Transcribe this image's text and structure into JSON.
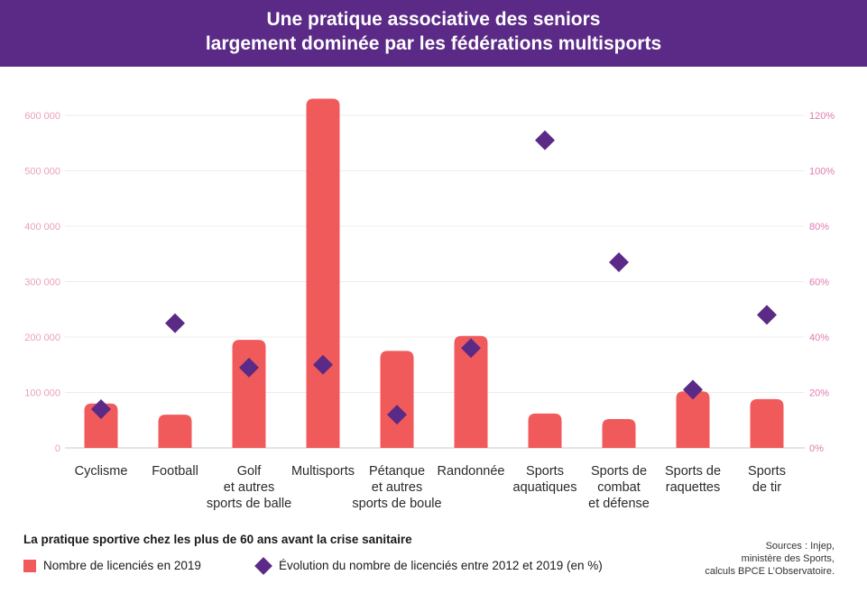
{
  "title": {
    "line1": "Une pratique associative des seniors",
    "line2": "largement dominée par les fédérations multisports"
  },
  "colors": {
    "header_bg": "#5b2a86",
    "bar": "#f05a5b",
    "diamond": "#5b2a86",
    "left_axis_text": "#e9a0bf",
    "right_axis_text": "#e07ab0"
  },
  "chart_data": {
    "type": "bar+scatter",
    "categories": [
      [
        "Cyclisme"
      ],
      [
        "Football"
      ],
      [
        "Golf",
        "et autres",
        "sports de balle"
      ],
      [
        "Multisports"
      ],
      [
        "Pétanque",
        "et autres",
        "sports de boule"
      ],
      [
        "Randonnée"
      ],
      [
        "Sports",
        "aquatiques"
      ],
      [
        "Sports de",
        "combat",
        "et défense"
      ],
      [
        "Sports de",
        "raquettes"
      ],
      [
        "Sports",
        "de tir"
      ]
    ],
    "series": [
      {
        "name": "Nombre de licenciés en 2019",
        "axis": "left",
        "kind": "bar",
        "values": [
          80000,
          60000,
          195000,
          630000,
          175000,
          202000,
          62000,
          52000,
          102000,
          88000
        ]
      },
      {
        "name": "Évolution du nombre de licenciés entre 2012 et 2019 (en %)",
        "axis": "right",
        "kind": "diamond",
        "values": [
          14,
          45,
          29,
          30,
          12,
          36,
          111,
          67,
          21,
          48
        ]
      }
    ],
    "left_axis": {
      "min": 0,
      "max": 600000,
      "ticks": [
        0,
        100000,
        200000,
        300000,
        400000,
        500000,
        600000
      ],
      "tick_labels": [
        "0",
        "100 000",
        "200 000",
        "300 000",
        "400 000",
        "500 000",
        "600 000"
      ]
    },
    "right_axis": {
      "min": 0,
      "max": 120,
      "ticks": [
        0,
        20,
        40,
        60,
        80,
        100,
        120
      ],
      "tick_labels": [
        "0%",
        "20%",
        "40%",
        "60%",
        "80%",
        "100%",
        "120%"
      ]
    },
    "grid": true
  },
  "legend": {
    "title": "La pratique sportive chez les plus de 60 ans avant la crise sanitaire",
    "bar_label": "Nombre de licenciés en 2019",
    "diamond_label": "Évolution du nombre de licenciés entre 2012 et 2019 (en %)"
  },
  "sources": [
    "Sources : Injep,",
    "ministère des Sports,",
    "calculs BPCE L’Observatoire."
  ]
}
